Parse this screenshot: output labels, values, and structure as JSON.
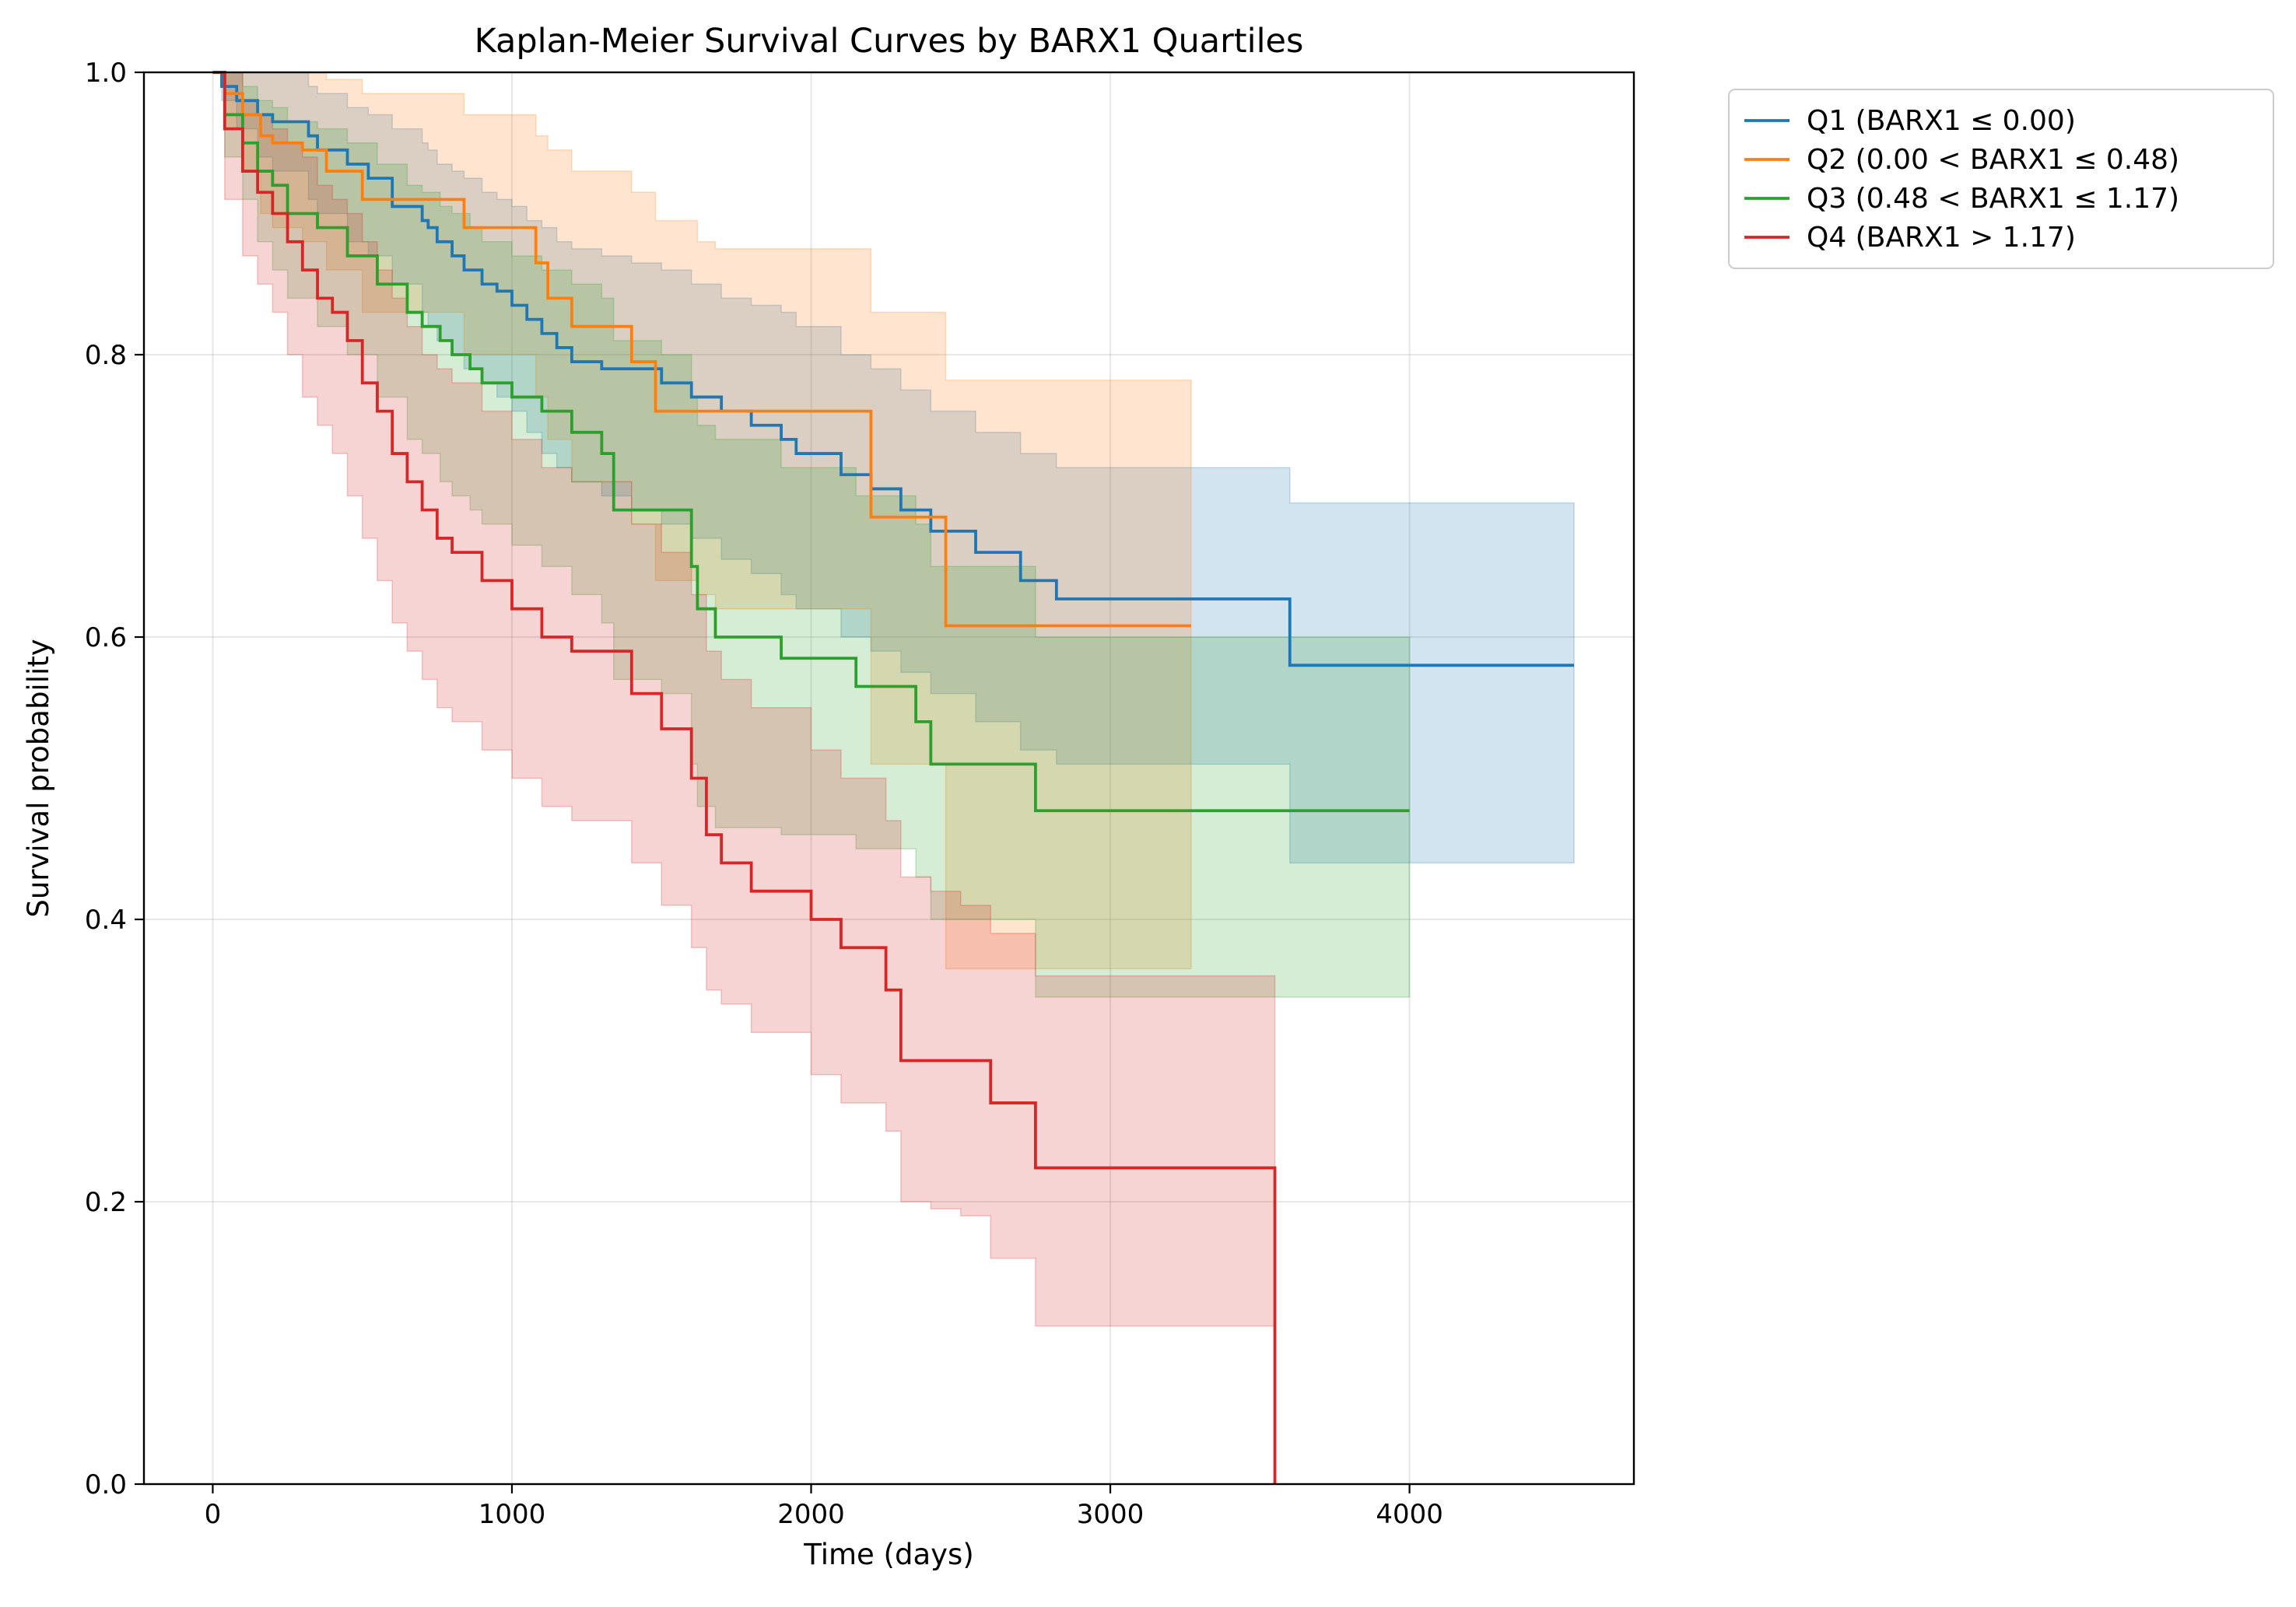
{
  "chart_data": {
    "type": "line",
    "step": true,
    "title": "Kaplan-Meier Survival Curves by BARX1 Quartiles",
    "xlabel": "Time (days)",
    "ylabel": "Survival probability",
    "xlim": [
      -230,
      4750
    ],
    "ylim": [
      0,
      1
    ],
    "xticks": [
      0,
      1000,
      2000,
      3000,
      4000
    ],
    "yticks": [
      0.0,
      0.2,
      0.4,
      0.6,
      0.8,
      1.0
    ],
    "xtick_labels": [
      "0",
      "1000",
      "2000",
      "3000",
      "4000"
    ],
    "ytick_labels": [
      "0.0",
      "0.2",
      "0.4",
      "0.6",
      "0.8",
      "1.0"
    ],
    "grid": true,
    "legend_position": "outside-top-right",
    "series": [
      {
        "name": "Q1 (BARX1 ≤ 0.00)",
        "color": "#1f77b4",
        "x": [
          0,
          30,
          80,
          150,
          200,
          320,
          350,
          450,
          520,
          600,
          700,
          720,
          750,
          800,
          840,
          900,
          950,
          1000,
          1050,
          1100,
          1150,
          1200,
          1300,
          1400,
          1500,
          1600,
          1700,
          1800,
          1900,
          1950,
          2100,
          2200,
          2300,
          2400,
          2550,
          2700,
          2820,
          3600,
          4550
        ],
        "y": [
          1.0,
          0.99,
          0.98,
          0.97,
          0.965,
          0.955,
          0.945,
          0.935,
          0.925,
          0.905,
          0.895,
          0.89,
          0.88,
          0.87,
          0.86,
          0.85,
          0.845,
          0.835,
          0.825,
          0.815,
          0.805,
          0.795,
          0.79,
          0.79,
          0.78,
          0.77,
          0.76,
          0.75,
          0.74,
          0.73,
          0.715,
          0.705,
          0.69,
          0.675,
          0.66,
          0.64,
          0.627,
          0.58,
          0.58
        ],
        "ci_lower": [
          1.0,
          0.98,
          0.96,
          0.94,
          0.93,
          0.91,
          0.9,
          0.88,
          0.87,
          0.85,
          0.83,
          0.82,
          0.81,
          0.8,
          0.79,
          0.78,
          0.77,
          0.76,
          0.745,
          0.73,
          0.72,
          0.71,
          0.7,
          0.69,
          0.68,
          0.67,
          0.655,
          0.645,
          0.63,
          0.62,
          0.6,
          0.59,
          0.575,
          0.56,
          0.54,
          0.52,
          0.51,
          0.44,
          0.44
        ],
        "ci_upper": [
          1.0,
          1.0,
          1.0,
          1.0,
          1.0,
          0.99,
          0.985,
          0.975,
          0.97,
          0.96,
          0.95,
          0.945,
          0.935,
          0.93,
          0.925,
          0.915,
          0.91,
          0.905,
          0.895,
          0.89,
          0.88,
          0.875,
          0.87,
          0.865,
          0.86,
          0.85,
          0.84,
          0.835,
          0.83,
          0.82,
          0.8,
          0.79,
          0.775,
          0.76,
          0.745,
          0.73,
          0.72,
          0.695,
          0.695
        ]
      },
      {
        "name": "Q2 (0.00 < BARX1 ≤ 0.48)",
        "color": "#ff7f0e",
        "x": [
          0,
          40,
          100,
          160,
          200,
          300,
          380,
          500,
          840,
          1080,
          1120,
          1200,
          1400,
          1480,
          1620,
          1680,
          2200,
          2450,
          3270
        ],
        "y": [
          1.0,
          0.985,
          0.97,
          0.955,
          0.95,
          0.945,
          0.93,
          0.91,
          0.89,
          0.865,
          0.84,
          0.82,
          0.795,
          0.76,
          0.76,
          0.76,
          0.685,
          0.608,
          0.608
        ],
        "ci_lower": [
          1.0,
          0.96,
          0.93,
          0.9,
          0.89,
          0.88,
          0.86,
          0.83,
          0.8,
          0.77,
          0.74,
          0.71,
          0.68,
          0.64,
          0.63,
          0.62,
          0.51,
          0.365,
          0.365
        ],
        "ci_upper": [
          1.0,
          1.0,
          1.0,
          1.0,
          1.0,
          1.0,
          0.995,
          0.985,
          0.97,
          0.955,
          0.945,
          0.93,
          0.915,
          0.895,
          0.88,
          0.875,
          0.83,
          0.782,
          0.782
        ]
      },
      {
        "name": "Q3 (0.48 < BARX1 ≤ 1.17)",
        "color": "#2ca02c",
        "x": [
          0,
          40,
          100,
          150,
          200,
          250,
          350,
          450,
          550,
          650,
          700,
          760,
          800,
          860,
          900,
          1000,
          1100,
          1200,
          1300,
          1340,
          1500,
          1600,
          1620,
          1680,
          1900,
          2150,
          2350,
          2400,
          2750,
          4000
        ],
        "y": [
          1.0,
          0.97,
          0.95,
          0.93,
          0.92,
          0.9,
          0.89,
          0.87,
          0.85,
          0.83,
          0.82,
          0.81,
          0.8,
          0.79,
          0.78,
          0.77,
          0.76,
          0.745,
          0.73,
          0.69,
          0.69,
          0.65,
          0.62,
          0.6,
          0.585,
          0.565,
          0.54,
          0.51,
          0.477,
          0.477
        ],
        "ci_lower": [
          1.0,
          0.94,
          0.91,
          0.88,
          0.86,
          0.84,
          0.82,
          0.8,
          0.77,
          0.74,
          0.73,
          0.71,
          0.7,
          0.69,
          0.68,
          0.665,
          0.65,
          0.63,
          0.61,
          0.57,
          0.56,
          0.51,
          0.48,
          0.465,
          0.46,
          0.45,
          0.43,
          0.4,
          0.345,
          0.345
        ],
        "ci_upper": [
          1.0,
          1.0,
          0.99,
          0.98,
          0.975,
          0.965,
          0.96,
          0.95,
          0.935,
          0.92,
          0.915,
          0.905,
          0.9,
          0.89,
          0.88,
          0.87,
          0.86,
          0.85,
          0.84,
          0.81,
          0.8,
          0.77,
          0.75,
          0.74,
          0.72,
          0.7,
          0.68,
          0.65,
          0.6,
          0.6
        ]
      },
      {
        "name": "Q4 (BARX1 > 1.17)",
        "color": "#d62728",
        "x": [
          0,
          40,
          100,
          150,
          200,
          250,
          300,
          350,
          400,
          450,
          500,
          550,
          600,
          650,
          700,
          750,
          800,
          900,
          1000,
          1100,
          1200,
          1400,
          1500,
          1600,
          1650,
          1700,
          1800,
          2000,
          2100,
          2250,
          2300,
          2400,
          2500,
          2600,
          2750,
          3550
        ],
        "y": [
          1.0,
          0.96,
          0.93,
          0.915,
          0.9,
          0.88,
          0.86,
          0.84,
          0.83,
          0.81,
          0.78,
          0.76,
          0.73,
          0.71,
          0.69,
          0.67,
          0.66,
          0.64,
          0.62,
          0.6,
          0.59,
          0.56,
          0.535,
          0.5,
          0.46,
          0.44,
          0.42,
          0.4,
          0.38,
          0.35,
          0.3,
          0.3,
          0.3,
          0.27,
          0.224,
          0.224
        ],
        "ci_lower": [
          1.0,
          0.91,
          0.87,
          0.85,
          0.83,
          0.8,
          0.77,
          0.75,
          0.73,
          0.7,
          0.67,
          0.64,
          0.61,
          0.59,
          0.57,
          0.55,
          0.54,
          0.52,
          0.5,
          0.48,
          0.47,
          0.44,
          0.41,
          0.38,
          0.35,
          0.34,
          0.32,
          0.29,
          0.27,
          0.25,
          0.2,
          0.195,
          0.19,
          0.16,
          0.112,
          0.112
        ],
        "ci_upper": [
          1.0,
          1.0,
          0.98,
          0.97,
          0.96,
          0.95,
          0.94,
          0.92,
          0.91,
          0.9,
          0.88,
          0.86,
          0.84,
          0.82,
          0.8,
          0.79,
          0.78,
          0.76,
          0.74,
          0.72,
          0.71,
          0.68,
          0.66,
          0.63,
          0.59,
          0.57,
          0.55,
          0.52,
          0.5,
          0.47,
          0.43,
          0.42,
          0.41,
          0.39,
          0.36,
          0.36
        ],
        "terminal_drop": {
          "x": 3550,
          "y": 0.0
        }
      }
    ]
  }
}
